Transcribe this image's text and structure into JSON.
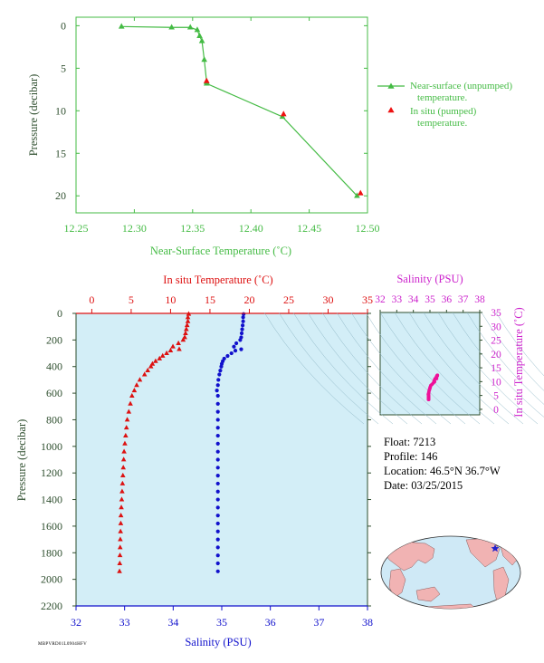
{
  "colors": {
    "near_surface": "#44bb44",
    "insitu_point": "#ee1111",
    "temperature": "#dd1111",
    "salinity": "#1111cc",
    "ts": "#ee1199",
    "panel_bg": "#d3eef7",
    "axis_dark": "#2e4e2e"
  },
  "chart_data": [
    {
      "type": "line",
      "xlabel": "Near-Surface Temperature (˚C)",
      "ylabel": "Pressure (decibar)",
      "xlim": [
        12.25,
        12.5
      ],
      "ylim": [
        22,
        -1
      ],
      "x_ticks": [
        "12.25",
        "12.30",
        "12.35",
        "12.40",
        "12.45",
        "12.50"
      ],
      "y_ticks": [
        "0",
        "5",
        "10",
        "15",
        "20"
      ],
      "legend": {
        "placement": "right",
        "entries": [
          {
            "line1": "Near-surface (unpumped)",
            "line2": "temperature."
          },
          {
            "line1": "In situ (pumped)",
            "line2": "temperature."
          }
        ]
      },
      "series": [
        {
          "name": "Near-surface (unpumped) temperature.",
          "x": [
            12.289,
            12.332,
            12.348,
            12.354,
            12.356,
            12.358,
            12.36,
            12.362,
            12.362,
            12.427,
            12.491
          ],
          "y": [
            0.1,
            0.2,
            0.2,
            0.5,
            1.2,
            1.8,
            4.0,
            6.6,
            6.8,
            10.7,
            20.0
          ]
        },
        {
          "name": "In situ (pumped) temperature.",
          "x": [
            12.362,
            12.428,
            12.494
          ],
          "y": [
            6.5,
            10.4,
            19.7
          ]
        }
      ]
    },
    {
      "type": "scatter",
      "ylabel": "Pressure (decibar)",
      "top_xlabel": "In situ Temperature (˚C)",
      "bottom_xlabel": "Salinity (PSU)",
      "temp_lim": [
        -2,
        35
      ],
      "sal_lim": [
        32,
        38
      ],
      "ylim": [
        0,
        2200
      ],
      "temp_ticks": [
        "0",
        "5",
        "10",
        "15",
        "20",
        "25",
        "30",
        "35"
      ],
      "sal_ticks": [
        "32",
        "33",
        "34",
        "35",
        "36",
        "37",
        "38"
      ],
      "y_ticks": [
        "0",
        "200",
        "400",
        "600",
        "800",
        "1000",
        "1200",
        "1400",
        "1600",
        "1800",
        "2000",
        "2200"
      ],
      "pressure": [
        5,
        30,
        60,
        90,
        120,
        150,
        180,
        200,
        225,
        250,
        270,
        280,
        300,
        320,
        340,
        360,
        380,
        400,
        430,
        460,
        500,
        540,
        580,
        620,
        680,
        740,
        800,
        860,
        920,
        980,
        1040,
        1100,
        1160,
        1220,
        1280,
        1340,
        1400,
        1460,
        1520,
        1580,
        1640,
        1700,
        1760,
        1820,
        1880,
        1940
      ],
      "temperature": [
        12.3,
        12.2,
        12.2,
        12.1,
        12.0,
        11.9,
        11.8,
        11.6,
        11.0,
        10.3,
        11.1,
        10.0,
        9.5,
        9.0,
        8.6,
        8.1,
        7.7,
        7.5,
        7.1,
        6.7,
        6.1,
        5.7,
        5.4,
        5.1,
        4.9,
        4.7,
        4.5,
        4.4,
        4.3,
        4.2,
        4.1,
        4.05,
        4.0,
        3.95,
        3.9,
        3.85,
        3.8,
        3.75,
        3.7,
        3.68,
        3.65,
        3.62,
        3.6,
        3.58,
        3.55,
        3.52
      ],
      "salinity": [
        35.45,
        35.44,
        35.44,
        35.43,
        35.42,
        35.41,
        35.4,
        35.38,
        35.3,
        35.25,
        35.4,
        35.28,
        35.2,
        35.12,
        35.05,
        35.02,
        35.0,
        34.99,
        34.97,
        34.95,
        34.93,
        34.92,
        34.9,
        34.92,
        34.92,
        34.92,
        34.92,
        34.92,
        34.92,
        34.92,
        34.92,
        34.92,
        34.92,
        34.92,
        34.92,
        34.92,
        34.92,
        34.92,
        34.92,
        34.92,
        34.92,
        34.92,
        34.92,
        34.92,
        34.92,
        34.92
      ]
    },
    {
      "type": "scatter",
      "title": "Salinity (PSU)",
      "ylabel": "In situ Temperature (˚C)",
      "xlim": [
        32,
        38
      ],
      "ylim": [
        -2,
        35
      ],
      "x_ticks": [
        "32",
        "33",
        "34",
        "35",
        "36",
        "37",
        "38"
      ],
      "y_ticks": [
        "0",
        "5",
        "10",
        "15",
        "20",
        "25",
        "30",
        "35"
      ]
    }
  ],
  "info": {
    "float": "Float:  7213",
    "profile": "Profile:  146",
    "location": "Location:  46.5°N  36.7°W",
    "date": "Date:  03/25/2015"
  },
  "footer_code": "MBPVRD01L0904HFV"
}
